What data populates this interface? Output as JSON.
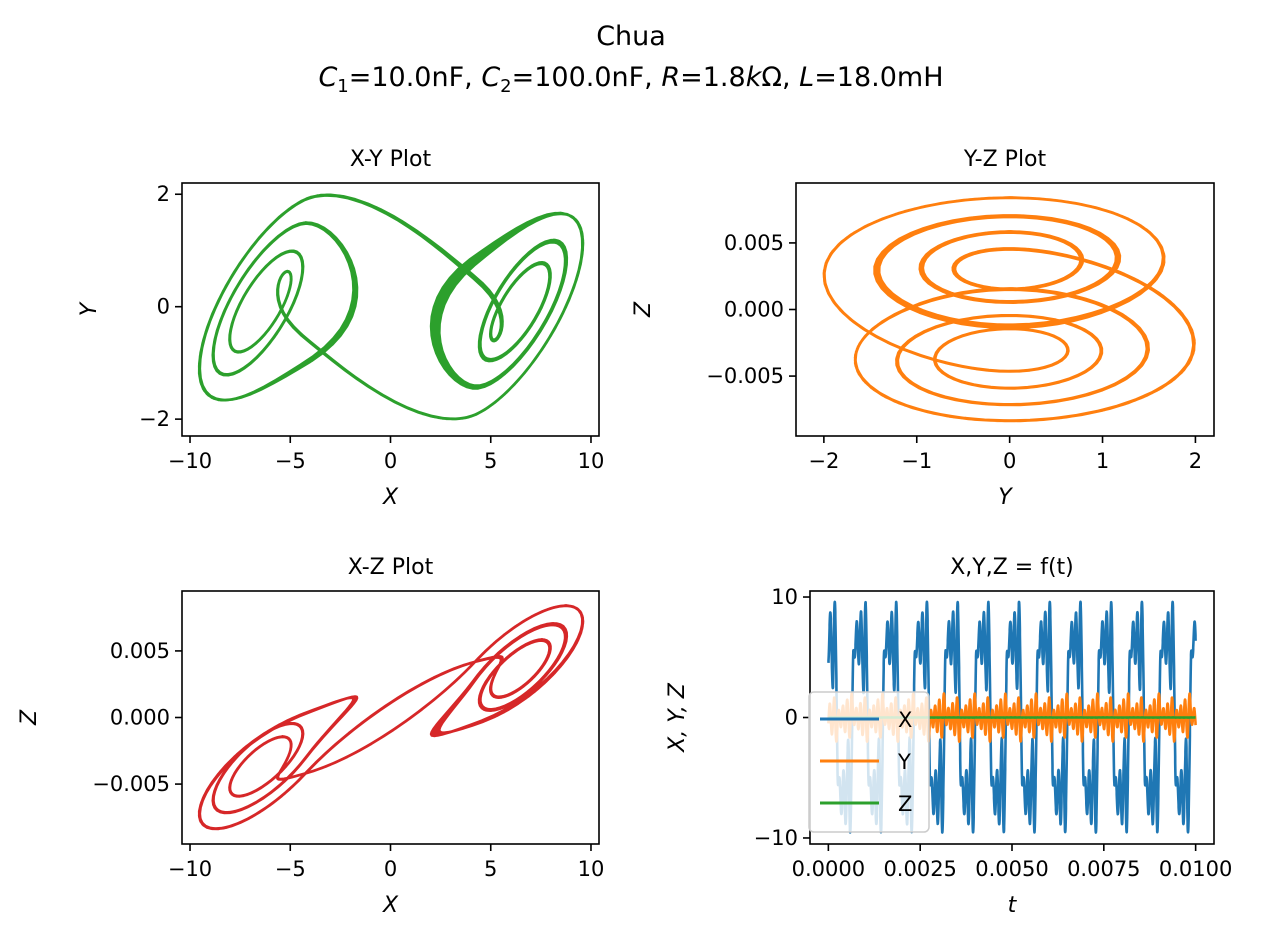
{
  "figure": {
    "title": "Chua",
    "subtitle_parts": {
      "c1_sym": "C",
      "c1_sub": "1",
      "c1_val": "=10.0nF, ",
      "c2_sym": "C",
      "c2_sub": "2",
      "c2_val": "=100.0nF, ",
      "r_sym": "R",
      "r_eq": "=1.8",
      "r_k": "k",
      "r_unit": "Ω, ",
      "l_sym": "L",
      "l_val": "=18.0mH"
    }
  },
  "chart_data": [
    {
      "type": "line",
      "title": "X-Y Plot",
      "xlabel": "X",
      "ylabel": "Y",
      "xlim": [
        -10.4,
        10.4
      ],
      "ylim": [
        -2.3,
        2.2
      ],
      "xticks": [
        -10,
        -5,
        0,
        5,
        10
      ],
      "xtick_labels": [
        "−10",
        "−5",
        "0",
        "5",
        "10"
      ],
      "yticks": [
        -2,
        0,
        2
      ],
      "ytick_labels": [
        "−2",
        "0",
        "2"
      ],
      "color": "#2ca02c",
      "trajectory": {
        "from": "X",
        "to": "Y"
      }
    },
    {
      "type": "line",
      "title": "Y-Z Plot",
      "xlabel": "Y",
      "ylabel": "Z",
      "xlim": [
        -2.3,
        2.2
      ],
      "ylim": [
        -0.0095,
        0.0095
      ],
      "xticks": [
        -2,
        -1,
        0,
        1,
        2
      ],
      "xtick_labels": [
        "−2",
        "−1",
        "0",
        "1",
        "2"
      ],
      "yticks": [
        -0.005,
        0.0,
        0.005
      ],
      "ytick_labels": [
        "−0.005",
        "0.000",
        "0.005"
      ],
      "color": "#ff7f0e",
      "trajectory": {
        "from": "Y",
        "to": "Z"
      }
    },
    {
      "type": "line",
      "title": "X-Z Plot",
      "xlabel": "X",
      "ylabel": "Z",
      "xlim": [
        -10.4,
        10.4
      ],
      "ylim": [
        -0.0095,
        0.0095
      ],
      "xticks": [
        -10,
        -5,
        0,
        5,
        10
      ],
      "xtick_labels": [
        "−10",
        "−5",
        "0",
        "5",
        "10"
      ],
      "yticks": [
        -0.005,
        0.0,
        0.005
      ],
      "ytick_labels": [
        "−0.005",
        "0.000",
        "0.005"
      ],
      "color": "#d62728",
      "trajectory": {
        "from": "X",
        "to": "Z"
      }
    },
    {
      "type": "line",
      "title": "X,Y,Z = f(t)",
      "xlabel": "t",
      "ylabel": "X, Y, Z",
      "xlim": [
        -0.0005,
        0.0105
      ],
      "ylim": [
        -10.5,
        10.5
      ],
      "xticks": [
        0.0,
        0.0025,
        0.005,
        0.0075,
        0.01
      ],
      "xtick_labels": [
        "0.0000",
        "0.0025",
        "0.0050",
        "0.0075",
        "0.0100"
      ],
      "yticks": [
        -10,
        0,
        10
      ],
      "ytick_labels": [
        "−10",
        "0",
        "10"
      ],
      "legend": {
        "placement": "lower-left",
        "entries": [
          "X",
          "Y",
          "Z"
        ]
      },
      "series": [
        {
          "name": "X",
          "color": "#1f77b4"
        },
        {
          "name": "Y",
          "color": "#ff7f0e"
        },
        {
          "name": "Z",
          "color": "#2ca02c"
        }
      ],
      "t_range": [
        0.0,
        0.01
      ]
    }
  ]
}
